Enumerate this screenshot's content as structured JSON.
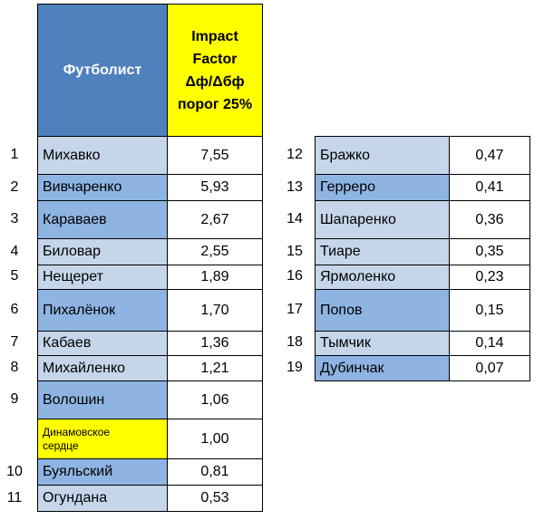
{
  "header": {
    "player": "Футболист",
    "impact_line1": "Impact",
    "impact_line2": "Factor",
    "impact_line3": "Δф/Δбф",
    "impact_line4": "порог 25%"
  },
  "left_rows": [
    {
      "num": "1",
      "name": "Михавко",
      "value": "7,55"
    },
    {
      "num": "2",
      "name": "Вивчаренко",
      "value": "5,93"
    },
    {
      "num": "3",
      "name": "Караваев",
      "value": "2,67"
    },
    {
      "num": "4",
      "name": "Биловар",
      "value": "2,55"
    },
    {
      "num": "5",
      "name": "Нещерет",
      "value": "1,89"
    },
    {
      "num": "6",
      "name": "Пихалёнок",
      "value": "1,70"
    },
    {
      "num": "7",
      "name": "Кабаев",
      "value": "1,36"
    },
    {
      "num": "8",
      "name": "Михайленко",
      "value": "1,21"
    },
    {
      "num": "9",
      "name": "Волошин",
      "value": "1,06"
    },
    {
      "num": "",
      "name": "Динамовское сердце",
      "value": "1,00"
    },
    {
      "num": "10",
      "name": "Буяльский",
      "value": "0,81"
    },
    {
      "num": "11",
      "name": "Огундана",
      "value": "0,53"
    }
  ],
  "right_rows": [
    {
      "num": "12",
      "name": "Бражко",
      "value": "0,47"
    },
    {
      "num": "13",
      "name": "Герреро",
      "value": "0,41"
    },
    {
      "num": "14",
      "name": "Шапаренко",
      "value": "0,36"
    },
    {
      "num": "15",
      "name": "Тиаре",
      "value": "0,35"
    },
    {
      "num": "16",
      "name": "Ярмоленко",
      "value": "0,23"
    },
    {
      "num": "17",
      "name": "Попов",
      "value": "0,15"
    },
    {
      "num": "18",
      "name": "Тымчик",
      "value": "0,14"
    },
    {
      "num": "19",
      "name": "Дубинчак",
      "value": "0,07"
    }
  ],
  "colors": {
    "header_blue": "#4f81bd",
    "header_yellow": "#ffff00",
    "light_blue": "#c5d5ea",
    "mid_blue": "#8eb4e3"
  }
}
